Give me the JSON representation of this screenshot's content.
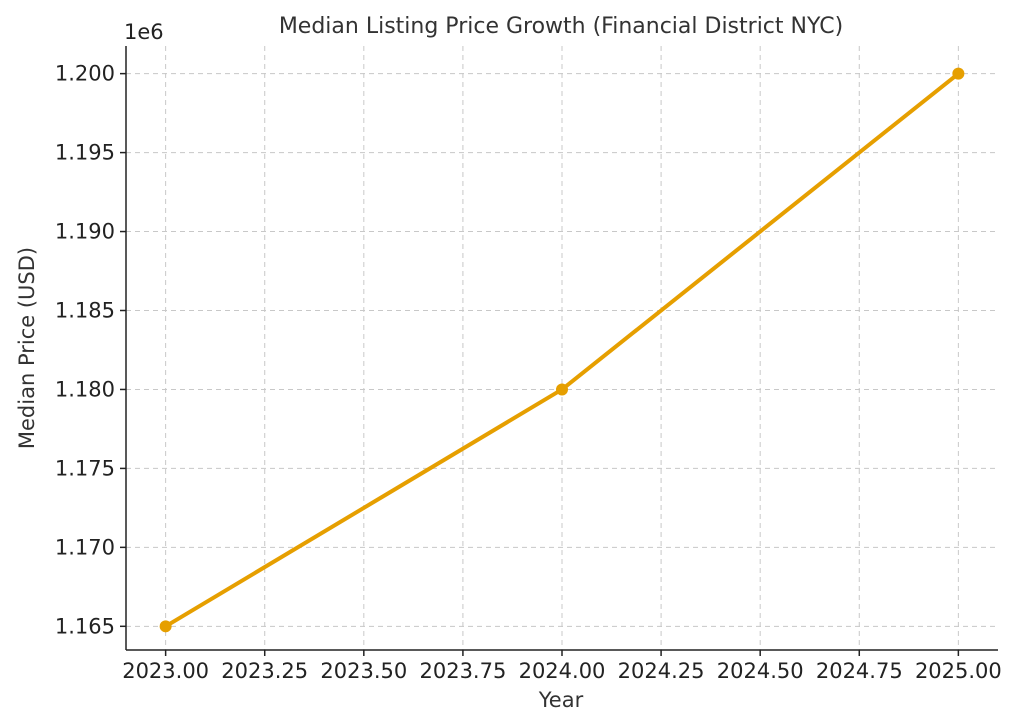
{
  "chart_data": {
    "type": "line",
    "title": "Median Listing Price Growth (Financial District NYC)",
    "xlabel": "Year",
    "ylabel": "Median Price (USD)",
    "y_offset_label": "1e6",
    "xlim": [
      2022.9,
      2025.1
    ],
    "ylim": [
      1163500,
      1201750
    ],
    "x_ticks": [
      2023.0,
      2023.25,
      2023.5,
      2023.75,
      2024.0,
      2024.25,
      2024.5,
      2024.75,
      2025.0
    ],
    "x_tick_labels": [
      "2023.00",
      "2023.25",
      "2023.50",
      "2023.75",
      "2024.00",
      "2024.25",
      "2024.50",
      "2024.75",
      "2025.00"
    ],
    "y_ticks": [
      1165000,
      1170000,
      1175000,
      1180000,
      1185000,
      1190000,
      1195000,
      1200000
    ],
    "y_tick_labels": [
      "1.165",
      "1.170",
      "1.175",
      "1.180",
      "1.185",
      "1.190",
      "1.195",
      "1.200"
    ],
    "grid": true,
    "series": [
      {
        "x": [
          2023,
          2024,
          2025
        ],
        "values": [
          1165000,
          1180000,
          1200000
        ],
        "color": "#E69F00"
      }
    ]
  }
}
